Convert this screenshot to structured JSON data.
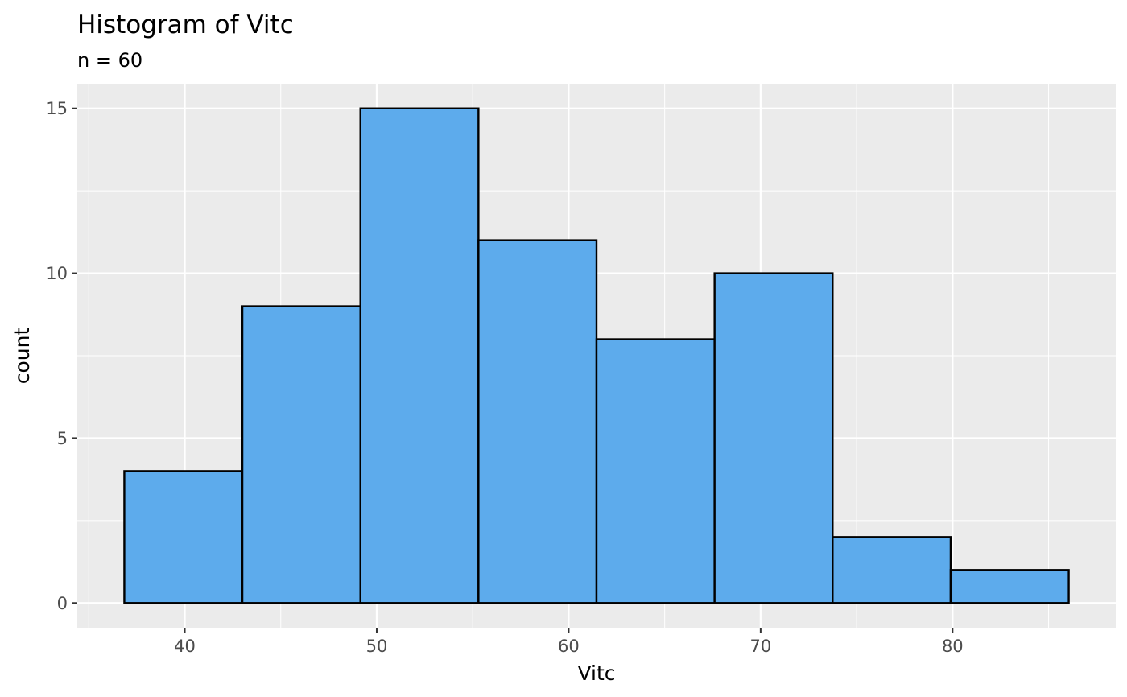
{
  "chart_data": {
    "type": "bar",
    "subtype": "histogram",
    "title": "Histogram of Vitc",
    "subtitle": "n = 60",
    "xlabel": "Vitc",
    "ylabel": "count",
    "bins": [
      {
        "start": 36.85,
        "end": 43.0,
        "count": 4
      },
      {
        "start": 43.0,
        "end": 49.15,
        "count": 9
      },
      {
        "start": 49.15,
        "end": 55.3,
        "count": 15
      },
      {
        "start": 55.3,
        "end": 61.45,
        "count": 11
      },
      {
        "start": 61.45,
        "end": 67.6,
        "count": 8
      },
      {
        "start": 67.6,
        "end": 73.75,
        "count": 10
      },
      {
        "start": 73.75,
        "end": 79.9,
        "count": 2
      },
      {
        "start": 79.9,
        "end": 86.05,
        "count": 1
      }
    ],
    "xlim": [
      34.4,
      88.5
    ],
    "ylim": [
      -0.75,
      15.75
    ],
    "x_ticks": [
      40,
      50,
      60,
      70,
      80
    ],
    "y_ticks": [
      0,
      5,
      10,
      15
    ],
    "grid": true,
    "colors": {
      "bar_fill": "#5dabec",
      "bar_stroke": "#000000",
      "panel_background": "#ebebeb",
      "grid": "#ffffff"
    }
  }
}
